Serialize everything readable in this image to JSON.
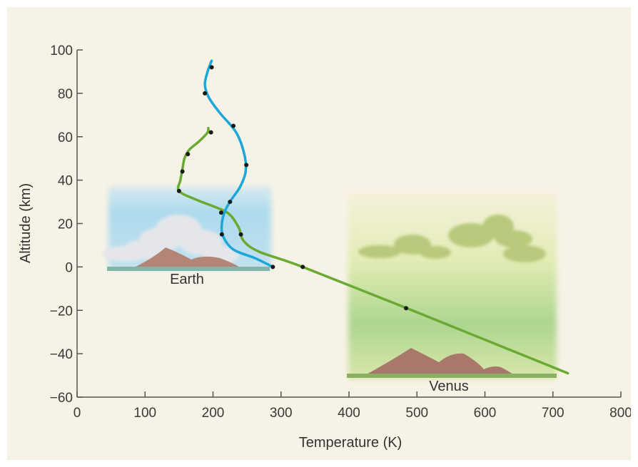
{
  "chart_data": {
    "type": "line",
    "xlabel": "Temperature (K)",
    "ylabel": "Altitude (km)",
    "xlim": [
      0,
      800
    ],
    "ylim": [
      -60,
      100
    ],
    "xticks": [
      "0",
      "100",
      "200",
      "300",
      "400",
      "500",
      "600",
      "700",
      "800"
    ],
    "yticks": [
      "100",
      "80",
      "60",
      "40",
      "20",
      "0",
      "-20",
      "-40",
      "-60"
    ],
    "annotations": [
      "Earth",
      "Venus"
    ],
    "series": [
      {
        "color": "#1aa7d9",
        "line": [
          [
            288,
            0
          ],
          [
            262,
            4
          ],
          [
            230,
            8
          ],
          [
            215,
            14
          ],
          [
            213,
            20
          ],
          [
            218,
            26
          ],
          [
            227,
            31
          ],
          [
            240,
            37
          ],
          [
            248,
            44
          ],
          [
            246,
            52
          ],
          [
            234,
            62
          ],
          [
            210,
            71
          ],
          [
            194,
            78
          ],
          [
            188,
            84
          ],
          [
            192,
            90
          ],
          [
            198,
            95
          ]
        ],
        "points": [
          [
            288,
            0
          ],
          [
            213,
            15
          ],
          [
            225,
            30
          ],
          [
            249,
            47
          ],
          [
            230,
            65
          ],
          [
            188,
            80
          ],
          [
            198,
            92
          ]
        ]
      },
      {
        "color": "#6aaa33",
        "line": [
          [
            722,
            -49
          ],
          [
            485,
            -19
          ],
          [
            332,
            0
          ],
          [
            268,
            7
          ],
          [
            245,
            12
          ],
          [
            238,
            18
          ],
          [
            225,
            24
          ],
          [
            208,
            27
          ],
          [
            175,
            31
          ],
          [
            150,
            35
          ],
          [
            152,
            40
          ],
          [
            155,
            45
          ],
          [
            158,
            50
          ],
          [
            165,
            54
          ],
          [
            180,
            58
          ],
          [
            192,
            62
          ],
          [
            193,
            64
          ]
        ],
        "points": [
          [
            484,
            -19
          ],
          [
            332,
            0
          ],
          [
            241,
            15
          ],
          [
            212,
            25
          ],
          [
            150,
            35
          ],
          [
            155,
            44
          ],
          [
            163,
            52
          ],
          [
            197,
            62
          ]
        ]
      }
    ]
  }
}
